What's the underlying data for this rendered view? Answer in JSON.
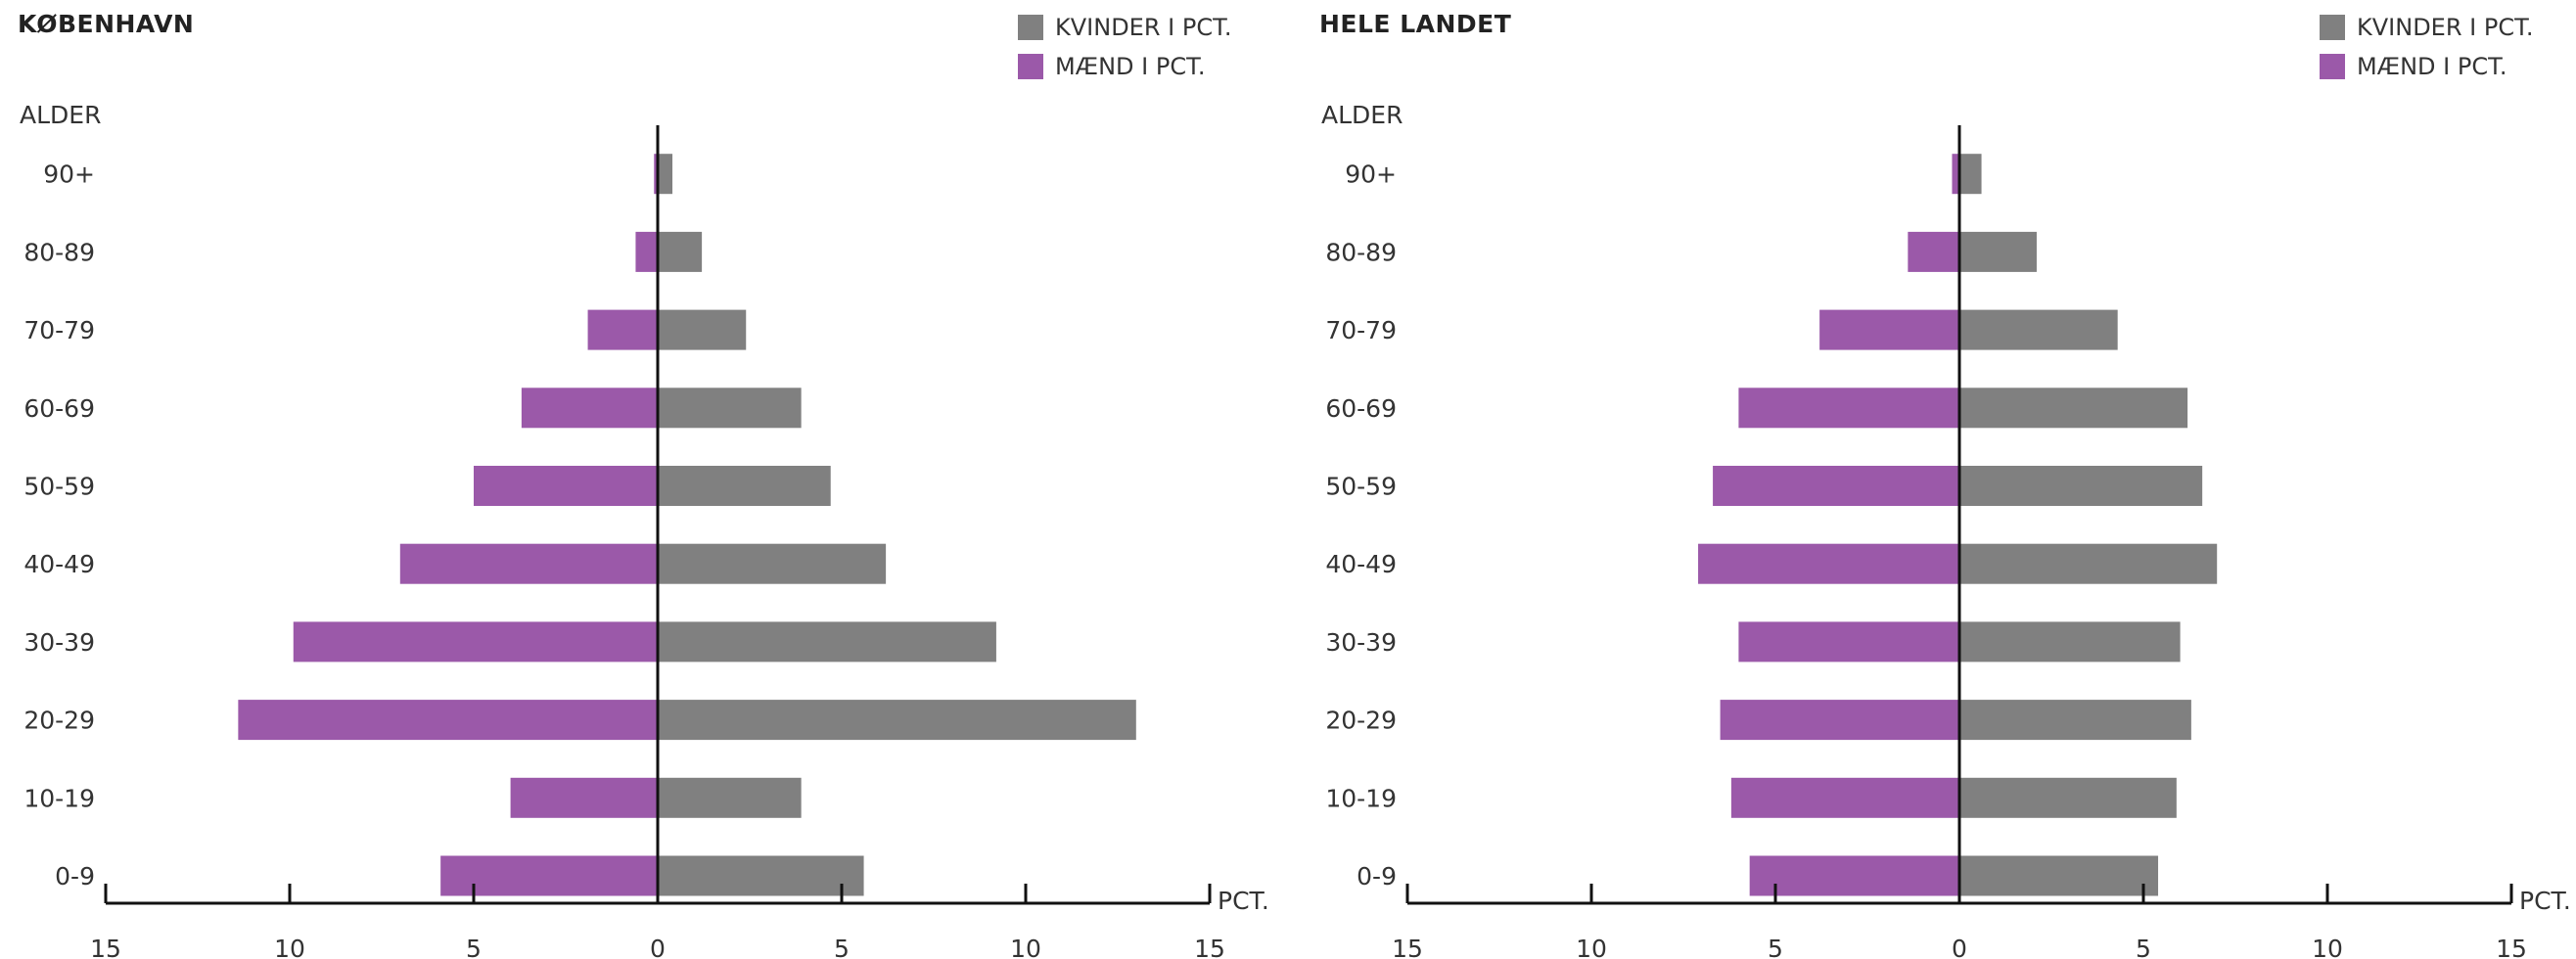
{
  "colors": {
    "women": "#808080",
    "men": "#9b59a9",
    "axis": "#111111"
  },
  "legend": {
    "women_label": "KVINDER I PCT.",
    "men_label": "MÆND I PCT."
  },
  "chart_data": [
    {
      "type": "bar",
      "title": "KØBENHAVN",
      "ylabel": "ALDER",
      "xlabel": "PCT.",
      "categories": [
        "0-9",
        "10-19",
        "20-29",
        "30-39",
        "40-49",
        "50-59",
        "60-69",
        "70-79",
        "80-89",
        "90+"
      ],
      "series": [
        {
          "name": "KVINDER I PCT.",
          "values": [
            5.6,
            3.9,
            13.0,
            9.2,
            6.2,
            4.7,
            3.9,
            2.4,
            1.2,
            0.4
          ]
        },
        {
          "name": "MÆND I PCT.",
          "values": [
            5.9,
            4.0,
            11.4,
            9.9,
            7.0,
            5.0,
            3.7,
            1.9,
            0.6,
            0.1
          ]
        }
      ],
      "xlim": [
        -15,
        15
      ],
      "xticks": [
        15,
        10,
        5,
        0,
        5,
        10,
        15
      ]
    },
    {
      "type": "bar",
      "title": "HELE LANDET",
      "ylabel": "ALDER",
      "xlabel": "PCT.",
      "categories": [
        "0-9",
        "10-19",
        "20-29",
        "30-39",
        "40-49",
        "50-59",
        "60-69",
        "70-79",
        "80-89",
        "90+"
      ],
      "series": [
        {
          "name": "KVINDER I PCT.",
          "values": [
            5.4,
            5.9,
            6.3,
            6.0,
            7.0,
            6.6,
            6.2,
            4.3,
            2.1,
            0.6
          ]
        },
        {
          "name": "MÆND I PCT.",
          "values": [
            5.7,
            6.2,
            6.5,
            6.0,
            7.1,
            6.7,
            6.0,
            3.8,
            1.4,
            0.2
          ]
        }
      ],
      "xlim": [
        -15,
        15
      ],
      "xticks": [
        15,
        10,
        5,
        0,
        5,
        10,
        15
      ]
    }
  ]
}
